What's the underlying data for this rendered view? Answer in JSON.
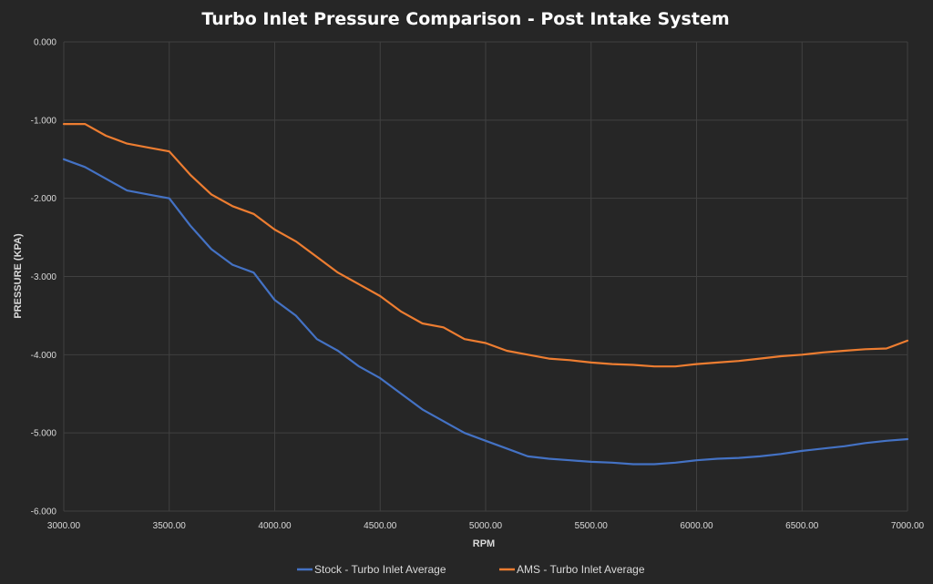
{
  "chart_data": {
    "type": "line",
    "title": "Turbo Inlet Pressure Comparison - Post Intake System",
    "xlabel": "RPM",
    "ylabel": "PRESSURE (KPA)",
    "xlim": [
      3000,
      7000
    ],
    "ylim": [
      -6,
      0
    ],
    "grid": true,
    "legend_position": "bottom",
    "x_ticks": [
      "3000.00",
      "3500.00",
      "4000.00",
      "4500.00",
      "5000.00",
      "5500.00",
      "6000.00",
      "6500.00",
      "7000.00"
    ],
    "y_ticks": [
      "0.000",
      "-1.000",
      "-2.000",
      "-3.000",
      "-4.000",
      "-5.000",
      "-6.000"
    ],
    "x_tick_values": [
      3000,
      3500,
      4000,
      4500,
      5000,
      5500,
      6000,
      6500,
      7000
    ],
    "y_tick_values": [
      0,
      -1,
      -2,
      -3,
      -4,
      -5,
      -6
    ],
    "x": [
      3000,
      3100,
      3200,
      3300,
      3400,
      3500,
      3600,
      3700,
      3800,
      3900,
      4000,
      4100,
      4200,
      4300,
      4400,
      4500,
      4600,
      4700,
      4800,
      4900,
      5000,
      5100,
      5200,
      5300,
      5400,
      5500,
      5600,
      5700,
      5800,
      5900,
      6000,
      6100,
      6200,
      6300,
      6400,
      6500,
      6600,
      6700,
      6800,
      6900,
      7000
    ],
    "series": [
      {
        "name": "Stock - Turbo Inlet Average",
        "color": "#4472c4",
        "values": [
          -1.5,
          -1.6,
          -1.75,
          -1.9,
          -1.95,
          -2.0,
          -2.35,
          -2.65,
          -2.85,
          -2.95,
          -3.3,
          -3.5,
          -3.8,
          -3.95,
          -4.15,
          -4.3,
          -4.5,
          -4.7,
          -4.85,
          -5.0,
          -5.1,
          -5.2,
          -5.3,
          -5.33,
          -5.35,
          -5.37,
          -5.38,
          -5.4,
          -5.4,
          -5.38,
          -5.35,
          -5.33,
          -5.32,
          -5.3,
          -5.27,
          -5.23,
          -5.2,
          -5.17,
          -5.13,
          -5.1,
          -5.08
        ]
      },
      {
        "name": "AMS - Turbo Inlet Average",
        "color": "#ed7d31",
        "values": [
          -1.05,
          -1.05,
          -1.2,
          -1.3,
          -1.35,
          -1.4,
          -1.7,
          -1.95,
          -2.1,
          -2.2,
          -2.4,
          -2.55,
          -2.75,
          -2.95,
          -3.1,
          -3.25,
          -3.45,
          -3.6,
          -3.65,
          -3.8,
          -3.85,
          -3.95,
          -4.0,
          -4.05,
          -4.07,
          -4.1,
          -4.12,
          -4.13,
          -4.15,
          -4.15,
          -4.12,
          -4.1,
          -4.08,
          -4.05,
          -4.02,
          -4.0,
          -3.97,
          -3.95,
          -3.93,
          -3.92,
          -3.82
        ]
      }
    ]
  }
}
